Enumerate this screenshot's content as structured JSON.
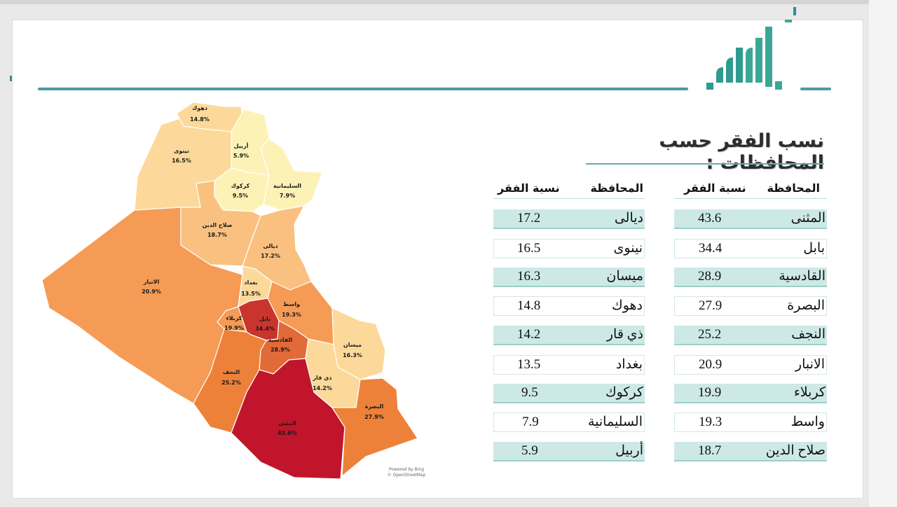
{
  "page": {
    "title": "نسب الفقر حسب المحافظات :"
  },
  "map": {
    "credit": [
      "Powered by Bing",
      "© OpenStreetMap"
    ],
    "regions": [
      {
        "name": "دهوك",
        "value": "14.8%"
      },
      {
        "name": "أربيل",
        "value": "5.9%"
      },
      {
        "name": "نينوى",
        "value": "16.5%"
      },
      {
        "name": "السليمانية",
        "value": "7.9%"
      },
      {
        "name": "كركوك",
        "value": "9.5%"
      },
      {
        "name": "صلاح الدين",
        "value": "18.7%"
      },
      {
        "name": "ديالى",
        "value": "17.2%"
      },
      {
        "name": "الانبار",
        "value": "20.9%"
      },
      {
        "name": "بغداد",
        "value": "13.5%"
      },
      {
        "name": "واسط",
        "value": "19.3%"
      },
      {
        "name": "كربلاء",
        "value": "19.9%"
      },
      {
        "name": "بابل",
        "value": "34.4%"
      },
      {
        "name": "القادسية",
        "value": "28.9%"
      },
      {
        "name": "ميسان",
        "value": "16.3%"
      },
      {
        "name": "النجف",
        "value": "25.2%"
      },
      {
        "name": "ذي قار",
        "value": "14.2%"
      },
      {
        "name": "البصرة",
        "value": "27.9%"
      },
      {
        "name": "المثنى",
        "value": "43.6%"
      }
    ],
    "colors": {
      "lowest": "#fdf2b6",
      "low": "#fcd99a",
      "mid_low": "#f9c080",
      "mid": "#f69b55",
      "high": "#ee8139",
      "higher": "#e26a38",
      "very_high": "#c9352d",
      "highest": "#c1152b"
    }
  },
  "table_left": {
    "col_province": "المحافظة",
    "col_rate": "نسبة الفقر",
    "rows": [
      {
        "province": "ديالى",
        "rate": "17.2"
      },
      {
        "province": "نينوى",
        "rate": "16.5"
      },
      {
        "province": "ميسان",
        "rate": "16.3"
      },
      {
        "province": "دهوك",
        "rate": "14.8"
      },
      {
        "province": "ذي قار",
        "rate": "14.2"
      },
      {
        "province": "بغداد",
        "rate": "13.5"
      },
      {
        "province": "كركوك",
        "rate": "9.5"
      },
      {
        "province": "السليمانية",
        "rate": "7.9"
      },
      {
        "province": "أربيل",
        "rate": "5.9"
      }
    ]
  },
  "table_right": {
    "col_province": "المحافظة",
    "col_rate": "نسبة الفقر",
    "rows": [
      {
        "province": "المثنى",
        "rate": "43.6"
      },
      {
        "province": "بابل",
        "rate": "34.4"
      },
      {
        "province": "القادسية",
        "rate": "28.9"
      },
      {
        "province": "البصرة",
        "rate": "27.9"
      },
      {
        "province": "النجف",
        "rate": "25.2"
      },
      {
        "province": "الانبار",
        "rate": "20.9"
      },
      {
        "province": "كربلاء",
        "rate": "19.9"
      },
      {
        "province": "واسط",
        "rate": "19.3"
      },
      {
        "province": "صلاح الدين",
        "rate": "18.7"
      }
    ]
  },
  "theme": {
    "accent": "#4a9aa0",
    "row_shade": "#cde9e6"
  }
}
